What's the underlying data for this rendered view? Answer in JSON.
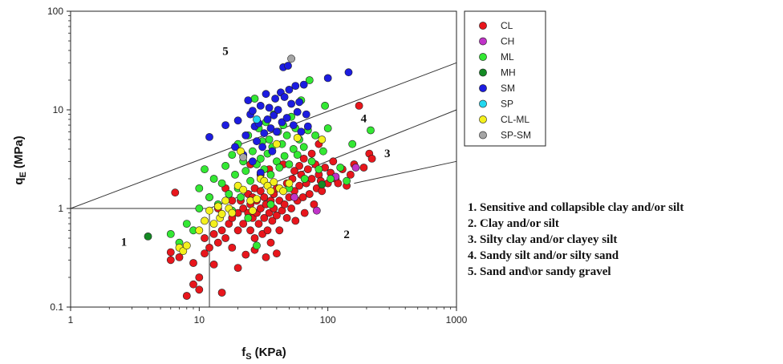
{
  "chart_data": {
    "type": "scatter",
    "xlabel": "f",
    "xlabel_sub": "S",
    "xlabel_unit": "(KPa)",
    "ylabel": "q",
    "ylabel_sub": "E",
    "ylabel_unit": "(MPa)",
    "xscale": "log",
    "yscale": "log",
    "xlim": [
      1,
      1000
    ],
    "ylim": [
      0.1,
      100
    ],
    "x_ticks": [
      "1",
      "10",
      "100",
      "1000"
    ],
    "y_ticks": [
      "0.1",
      "1",
      "10",
      "100"
    ],
    "grid": false,
    "legend_position": "right",
    "zone_labels": [
      {
        "text": "1",
        "x": 2.6,
        "y": 0.42
      },
      {
        "text": "2",
        "x": 140,
        "y": 0.5
      },
      {
        "text": "3",
        "x": 290,
        "y": 3.3
      },
      {
        "text": "4",
        "x": 190,
        "y": 7.5
      },
      {
        "text": "5",
        "x": 16,
        "y": 36
      }
    ],
    "boundaries": [
      [
        [
          1,
          1
        ],
        [
          1000,
          30
        ]
      ],
      [
        [
          12,
          1
        ],
        [
          1000,
          10
        ]
      ],
      [
        [
          160,
          1.8
        ],
        [
          1000,
          3
        ]
      ],
      [
        [
          1,
          1
        ],
        [
          12,
          1
        ]
      ],
      [
        [
          12,
          0.1
        ],
        [
          12,
          1
        ]
      ]
    ],
    "series": [
      {
        "name": "CL",
        "color": "#e8161c",
        "points": [
          [
            6.5,
            1.45
          ],
          [
            6,
            0.3
          ],
          [
            6,
            0.36
          ],
          [
            7,
            0.32
          ],
          [
            8,
            0.13
          ],
          [
            9,
            0.17
          ],
          [
            9,
            0.28
          ],
          [
            10,
            0.15
          ],
          [
            10,
            0.2
          ],
          [
            11,
            0.35
          ],
          [
            11,
            0.5
          ],
          [
            12,
            0.4
          ],
          [
            13,
            0.55
          ],
          [
            13,
            0.27
          ],
          [
            14,
            0.45
          ],
          [
            15,
            0.14
          ],
          [
            15,
            0.6
          ],
          [
            16,
            0.5
          ],
          [
            17,
            0.7
          ],
          [
            18,
            0.8
          ],
          [
            18,
            0.4
          ],
          [
            20,
            0.6
          ],
          [
            20,
            0.9
          ],
          [
            21,
            1.2
          ],
          [
            22,
            0.7
          ],
          [
            22,
            1.0
          ],
          [
            23,
            0.34
          ],
          [
            24,
            0.9
          ],
          [
            24,
            1.4
          ],
          [
            25,
            0.6
          ],
          [
            25,
            1.1
          ],
          [
            26,
            0.8
          ],
          [
            26,
            1.3
          ],
          [
            27,
            0.5
          ],
          [
            27,
            1.6
          ],
          [
            28,
            0.9
          ],
          [
            28,
            1.2
          ],
          [
            29,
            0.7
          ],
          [
            30,
            1.0
          ],
          [
            30,
            1.5
          ],
          [
            31,
            0.55
          ],
          [
            32,
            0.8
          ],
          [
            32,
            1.3
          ],
          [
            33,
            1.1
          ],
          [
            34,
            0.6
          ],
          [
            34,
            1.7
          ],
          [
            35,
            0.9
          ],
          [
            36,
            1.2
          ],
          [
            36,
            0.45
          ],
          [
            37,
            0.75
          ],
          [
            38,
            1.4
          ],
          [
            38,
            1.0
          ],
          [
            40,
            0.85
          ],
          [
            40,
            1.6
          ],
          [
            42,
            1.2
          ],
          [
            42,
            0.6
          ],
          [
            44,
            0.95
          ],
          [
            45,
            1.5
          ],
          [
            46,
            1.1
          ],
          [
            48,
            0.8
          ],
          [
            48,
            1.8
          ],
          [
            50,
            1.3
          ],
          [
            52,
            1.0
          ],
          [
            53,
            2.0
          ],
          [
            55,
            1.5
          ],
          [
            56,
            0.75
          ],
          [
            58,
            1.2
          ],
          [
            60,
            1.7
          ],
          [
            62,
            2.2
          ],
          [
            64,
            1.3
          ],
          [
            66,
            0.9
          ],
          [
            68,
            1.8
          ],
          [
            70,
            2.5
          ],
          [
            72,
            1.4
          ],
          [
            75,
            2.0
          ],
          [
            78,
            1.1
          ],
          [
            80,
            2.8
          ],
          [
            82,
            1.6
          ],
          [
            85,
            2.2
          ],
          [
            88,
            1.9
          ],
          [
            90,
            1.5
          ],
          [
            95,
            2.6
          ],
          [
            100,
            1.8
          ],
          [
            105,
            2.3
          ],
          [
            110,
            3.0
          ],
          [
            115,
            2.0
          ],
          [
            120,
            1.8
          ],
          [
            130,
            2.5
          ],
          [
            140,
            1.7
          ],
          [
            150,
            2.2
          ],
          [
            160,
            2.8
          ],
          [
            175,
            11.0
          ],
          [
            190,
            2.6
          ],
          [
            210,
            3.6
          ],
          [
            220,
            3.2
          ],
          [
            12,
            1.3
          ],
          [
            14,
            1.0
          ],
          [
            16,
            1.6
          ],
          [
            18,
            1.2
          ],
          [
            25,
            2.8
          ],
          [
            30,
            2.2
          ],
          [
            35,
            2.5
          ],
          [
            40,
            0.35
          ],
          [
            45,
            2.8
          ],
          [
            55,
            2.4
          ],
          [
            65,
            3.2
          ],
          [
            75,
            3.6
          ],
          [
            85,
            4.5
          ],
          [
            60,
            2.7
          ],
          [
            20,
            0.25
          ],
          [
            27,
            0.38
          ],
          [
            33,
            0.32
          ]
        ]
      },
      {
        "name": "CH",
        "color": "#c033c8",
        "points": [
          [
            55,
            1.3
          ],
          [
            82,
            0.95
          ],
          [
            115,
            2.1
          ],
          [
            165,
            2.6
          ]
        ]
      },
      {
        "name": "ML",
        "color": "#33e833",
        "points": [
          [
            6,
            0.55
          ],
          [
            7,
            0.45
          ],
          [
            8,
            0.7
          ],
          [
            9,
            0.6
          ],
          [
            10,
            1.0
          ],
          [
            10,
            1.6
          ],
          [
            11,
            2.5
          ],
          [
            12,
            1.3
          ],
          [
            13,
            2.0
          ],
          [
            14,
            1.1
          ],
          [
            15,
            1.8
          ],
          [
            16,
            2.7
          ],
          [
            17,
            1.4
          ],
          [
            18,
            3.5
          ],
          [
            19,
            2.2
          ],
          [
            20,
            1.6
          ],
          [
            20,
            4.5
          ],
          [
            21,
            1.3
          ],
          [
            22,
            3.0
          ],
          [
            23,
            2.4
          ],
          [
            24,
            5.5
          ],
          [
            25,
            1.9
          ],
          [
            26,
            3.8
          ],
          [
            27,
            13.0
          ],
          [
            28,
            2.8
          ],
          [
            29,
            6.5
          ],
          [
            30,
            3.2
          ],
          [
            31,
            4.8
          ],
          [
            32,
            2.5
          ],
          [
            33,
            7.5
          ],
          [
            34,
            3.6
          ],
          [
            35,
            5.0
          ],
          [
            36,
            2.2
          ],
          [
            37,
            4.2
          ],
          [
            38,
            9.0
          ],
          [
            40,
            3.0
          ],
          [
            41,
            6.0
          ],
          [
            42,
            2.6
          ],
          [
            44,
            4.5
          ],
          [
            45,
            7.0
          ],
          [
            46,
            3.4
          ],
          [
            48,
            5.5
          ],
          [
            50,
            2.8
          ],
          [
            52,
            8.5
          ],
          [
            54,
            4.0
          ],
          [
            56,
            6.5
          ],
          [
            58,
            3.5
          ],
          [
            60,
            5.0
          ],
          [
            62,
            12.5
          ],
          [
            65,
            4.2
          ],
          [
            70,
            6.2
          ],
          [
            72,
            20.0
          ],
          [
            75,
            3.0
          ],
          [
            80,
            5.5
          ],
          [
            85,
            2.5
          ],
          [
            92,
            3.8
          ],
          [
            95,
            11.0
          ],
          [
            100,
            6.5
          ],
          [
            105,
            2.0
          ],
          [
            125,
            2.6
          ],
          [
            140,
            1.9
          ],
          [
            155,
            4.5
          ],
          [
            215,
            6.2
          ],
          [
            28,
            0.42
          ],
          [
            24,
            0.8
          ],
          [
            18,
            0.95
          ],
          [
            36,
            1.1
          ],
          [
            50,
            1.6
          ],
          [
            66,
            2.0
          ]
        ]
      },
      {
        "name": "MH",
        "color": "#148a24",
        "points": [
          [
            4,
            0.52
          ],
          [
            90,
            1.75
          ]
        ]
      },
      {
        "name": "SM",
        "color": "#1c1ce0",
        "points": [
          [
            12,
            5.3
          ],
          [
            16,
            7.0
          ],
          [
            19,
            4.2
          ],
          [
            20,
            7.8
          ],
          [
            22,
            3.5
          ],
          [
            23,
            5.5
          ],
          [
            24,
            12.5
          ],
          [
            25,
            9.0
          ],
          [
            26,
            9.8
          ],
          [
            27,
            6.8
          ],
          [
            28,
            4.8
          ],
          [
            29,
            7.3
          ],
          [
            30,
            11.0
          ],
          [
            31,
            4.2
          ],
          [
            32,
            5.8
          ],
          [
            33,
            14.5
          ],
          [
            34,
            8.0
          ],
          [
            35,
            10.5
          ],
          [
            36,
            6.5
          ],
          [
            37,
            3.8
          ],
          [
            38,
            8.8
          ],
          [
            39,
            13.0
          ],
          [
            40,
            6.0
          ],
          [
            41,
            10.0
          ],
          [
            43,
            15.0
          ],
          [
            44,
            7.5
          ],
          [
            45,
            27.0
          ],
          [
            46,
            13.5
          ],
          [
            48,
            8.3
          ],
          [
            49,
            28.0
          ],
          [
            50,
            16.0
          ],
          [
            52,
            11.5
          ],
          [
            54,
            7.0
          ],
          [
            56,
            17.5
          ],
          [
            58,
            9.5
          ],
          [
            60,
            12.0
          ],
          [
            62,
            6.0
          ],
          [
            65,
            18.0
          ],
          [
            68,
            9.0
          ],
          [
            70,
            6.8
          ],
          [
            100,
            21.0
          ],
          [
            145,
            24.0
          ],
          [
            30,
            2.3
          ],
          [
            26,
            3.0
          ]
        ]
      },
      {
        "name": "SP",
        "color": "#22d8f0",
        "points": [
          [
            28,
            8.0
          ]
        ]
      },
      {
        "name": "CL-ML",
        "color": "#f4f01c",
        "points": [
          [
            7,
            0.4
          ],
          [
            7.5,
            0.37
          ],
          [
            8,
            0.42
          ],
          [
            10,
            0.6
          ],
          [
            11,
            0.75
          ],
          [
            12,
            0.95
          ],
          [
            13,
            0.7
          ],
          [
            14,
            1.05
          ],
          [
            14.5,
            0.8
          ],
          [
            15,
            0.88
          ],
          [
            16,
            1.2
          ],
          [
            17,
            1.0
          ],
          [
            18,
            0.9
          ],
          [
            20,
            1.7
          ],
          [
            21,
            3.8
          ],
          [
            22,
            1.55
          ],
          [
            25,
            1.2
          ],
          [
            26,
            0.95
          ],
          [
            28,
            1.25
          ],
          [
            30,
            2.0
          ],
          [
            32,
            1.9
          ],
          [
            34,
            1.7
          ],
          [
            36,
            1.5
          ],
          [
            38,
            1.85
          ],
          [
            40,
            4.5
          ],
          [
            42,
            1.6
          ],
          [
            45,
            1.5
          ],
          [
            50,
            1.8
          ],
          [
            58,
            5.2
          ],
          [
            90,
            5.0
          ]
        ]
      },
      {
        "name": "SP-SM",
        "color": "#a5a5a5",
        "points": [
          [
            22,
            3.3
          ],
          [
            52,
            33.0
          ]
        ]
      }
    ]
  },
  "notes": [
    "1. Sensitive and collapsible clay and/or silt",
    "2. Clay and/or silt",
    "3. Silty clay and/or clayey silt",
    "4. Sandy silt and/or silty sand",
    "5. Sand and\\or sandy gravel"
  ]
}
